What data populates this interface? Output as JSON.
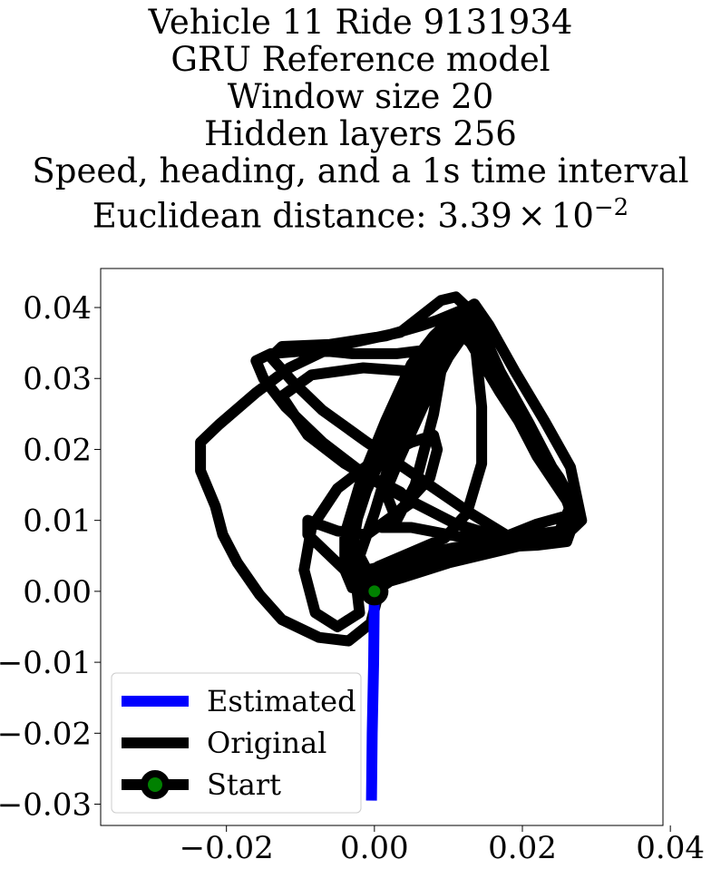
{
  "title_lines": [
    "Vehicle 11 Ride 9131934",
    "GRU Reference model",
    "Window size 20",
    "Hidden layers 256",
    "Speed, heading, and a 1s time interval"
  ],
  "distance": {
    "label": "Euclidean distance:",
    "mantissa": "3.39",
    "times": "×",
    "base": "10",
    "exponent": "−2"
  },
  "chart_data": {
    "type": "line",
    "xlim": [
      -0.037,
      0.039
    ],
    "ylim": [
      -0.033,
      0.0455
    ],
    "grid": false,
    "legend_position": "lower-left",
    "x_ticks": [
      {
        "value": -0.02,
        "label": "−0.02"
      },
      {
        "value": 0.0,
        "label": "0.00"
      },
      {
        "value": 0.02,
        "label": "0.02"
      },
      {
        "value": 0.04,
        "label": "0.04"
      }
    ],
    "y_ticks": [
      {
        "value": 0.04,
        "label": "0.04"
      },
      {
        "value": 0.03,
        "label": "0.03"
      },
      {
        "value": 0.02,
        "label": "0.02"
      },
      {
        "value": 0.01,
        "label": "0.01"
      },
      {
        "value": 0.0,
        "label": "0.00"
      },
      {
        "value": -0.01,
        "label": "−0.01"
      },
      {
        "value": -0.02,
        "label": "−0.02"
      },
      {
        "value": -0.03,
        "label": "−0.03"
      }
    ],
    "series": [
      {
        "name": "Estimated",
        "color": "#0000ff",
        "points": [
          [
            0.0,
            0.0
          ],
          [
            -0.0001,
            -0.01
          ],
          [
            -0.0003,
            -0.02
          ],
          [
            -0.0004,
            -0.0295
          ]
        ]
      },
      {
        "name": "Original",
        "color": "#000000",
        "points": [
          [
            0.0,
            0.0
          ],
          [
            -0.003,
            0.0005
          ],
          [
            -0.004,
            0.003
          ],
          [
            -0.004,
            0.008
          ],
          [
            -0.002,
            0.015
          ],
          [
            0.0015,
            0.024
          ],
          [
            0.005,
            0.032
          ],
          [
            0.008,
            0.036
          ],
          [
            0.009,
            0.037
          ],
          [
            0.01,
            0.036
          ],
          [
            0.008,
            0.033
          ],
          [
            0.003,
            0.025
          ],
          [
            -0.0005,
            0.016
          ],
          [
            -0.003,
            0.008
          ],
          [
            -0.0035,
            0.002
          ],
          [
            -0.001,
            0.0005
          ],
          [
            0.004,
            0.002
          ],
          [
            0.01,
            0.004
          ],
          [
            0.018,
            0.006
          ],
          [
            0.024,
            0.0075
          ],
          [
            0.027,
            0.009
          ],
          [
            0.026,
            0.013
          ],
          [
            0.022,
            0.02
          ],
          [
            0.017,
            0.028
          ],
          [
            0.013,
            0.035
          ],
          [
            0.011,
            0.038
          ],
          [
            0.009,
            0.037
          ],
          [
            0.007,
            0.033
          ],
          [
            0.004,
            0.027
          ],
          [
            0.001,
            0.019
          ],
          [
            -0.002,
            0.012
          ],
          [
            -0.003,
            0.006
          ],
          [
            -0.002,
            0.002
          ],
          [
            0.002,
            0.0025
          ],
          [
            0.009,
            0.005
          ],
          [
            0.016,
            0.007
          ],
          [
            0.022,
            0.008
          ],
          [
            0.026,
            0.0085
          ],
          [
            0.027,
            0.012
          ],
          [
            0.025,
            0.016
          ],
          [
            0.021,
            0.022
          ],
          [
            0.016,
            0.03
          ],
          [
            0.013,
            0.038
          ],
          [
            0.012,
            0.0385
          ],
          [
            0.009,
            0.034
          ],
          [
            0.005,
            0.026
          ],
          [
            0.002,
            0.018
          ],
          [
            0.0,
            0.011
          ],
          [
            -0.002,
            0.005
          ],
          [
            -0.001,
            0.003
          ],
          [
            0.003,
            0.004
          ],
          [
            0.01,
            0.006
          ],
          [
            0.018,
            0.0075
          ],
          [
            0.025,
            0.0085
          ],
          [
            0.0265,
            0.012
          ],
          [
            0.022,
            0.019
          ],
          [
            0.018,
            0.027
          ],
          [
            0.014,
            0.034
          ],
          [
            0.012,
            0.036
          ],
          [
            0.01,
            0.033
          ],
          [
            0.007,
            0.027
          ],
          [
            0.0035,
            0.019
          ],
          [
            0.0015,
            0.014
          ],
          [
            0.003,
            0.01
          ],
          [
            0.0055,
            0.015
          ],
          [
            0.008,
            0.025
          ],
          [
            0.0095,
            0.034
          ],
          [
            0.0105,
            0.0365
          ],
          [
            0.009,
            0.035
          ],
          [
            0.007,
            0.034
          ],
          [
            0.003,
            0.0335
          ],
          [
            -0.003,
            0.0335
          ],
          [
            -0.008,
            0.034
          ],
          [
            -0.014,
            0.0335
          ],
          [
            -0.016,
            0.0325
          ],
          [
            -0.015,
            0.03
          ],
          [
            -0.012,
            0.026
          ],
          [
            -0.007,
            0.021
          ],
          [
            -0.002,
            0.017
          ],
          [
            0.0035,
            0.014
          ],
          [
            0.005,
            0.0125
          ],
          [
            0.003,
            0.011
          ],
          [
            -0.001,
            0.008
          ],
          [
            -0.005,
            0.0085
          ],
          [
            -0.009,
            0.01
          ],
          [
            -0.009,
            0.008
          ],
          [
            -0.006,
            0.005
          ],
          [
            -0.0025,
            0.0015
          ],
          [
            -0.002,
            -0.003
          ],
          [
            -0.005,
            -0.005
          ],
          [
            -0.008,
            -0.003
          ],
          [
            -0.0095,
            0.003
          ],
          [
            -0.0085,
            0.009
          ],
          [
            -0.005,
            0.0145
          ],
          [
            0.0,
            0.0185
          ],
          [
            0.005,
            0.021
          ],
          [
            0.008,
            0.022
          ],
          [
            0.0085,
            0.02
          ],
          [
            0.0075,
            0.016
          ],
          [
            0.004,
            0.012
          ],
          [
            0.001,
            0.009
          ],
          [
            0.005,
            0.009
          ],
          [
            0.011,
            0.0078
          ],
          [
            0.017,
            0.0072
          ],
          [
            0.02,
            0.007
          ],
          [
            0.0185,
            0.0075
          ],
          [
            0.013,
            0.011
          ],
          [
            0.006,
            0.016
          ],
          [
            -0.001,
            0.021
          ],
          [
            -0.007,
            0.0255
          ],
          [
            -0.011,
            0.0295
          ],
          [
            -0.014,
            0.033
          ],
          [
            -0.0125,
            0.0345
          ],
          [
            -0.006,
            0.0348
          ],
          [
            0.0015,
            0.036
          ],
          [
            0.0065,
            0.0375
          ],
          [
            0.0085,
            0.0382
          ],
          [
            0.0115,
            0.0395
          ],
          [
            0.0135,
            0.036
          ],
          [
            0.0145,
            0.026
          ],
          [
            0.0145,
            0.018
          ],
          [
            0.0125,
            0.011
          ],
          [
            0.0095,
            0.0075
          ],
          [
            0.005,
            0.0055
          ],
          [
            0.0005,
            0.0035
          ],
          [
            0.003,
            0.0033
          ],
          [
            0.0085,
            0.005
          ],
          [
            0.016,
            0.007
          ],
          [
            0.022,
            0.0095
          ],
          [
            0.0265,
            0.0108
          ],
          [
            0.027,
            0.0105
          ],
          [
            0.025,
            0.0073
          ],
          [
            0.018,
            0.0073
          ],
          [
            0.011,
            0.0095
          ],
          [
            0.0035,
            0.0135
          ],
          [
            -0.004,
            0.018
          ],
          [
            -0.009,
            0.022
          ],
          [
            -0.0125,
            0.0275
          ],
          [
            -0.0085,
            0.0305
          ],
          [
            -0.0015,
            0.0315
          ],
          [
            0.005,
            0.031
          ],
          [
            0.009,
            0.0335
          ],
          [
            0.0105,
            0.0385
          ],
          [
            0.0135,
            0.0405
          ],
          [
            0.0155,
            0.0375
          ],
          [
            0.019,
            0.031
          ],
          [
            0.023,
            0.024
          ],
          [
            0.0265,
            0.0175
          ],
          [
            0.028,
            0.01
          ],
          [
            0.026,
            0.008
          ],
          [
            0.02,
            0.007
          ],
          [
            0.013,
            0.005
          ],
          [
            0.007,
            0.0035
          ],
          [
            0.003,
            0.003
          ],
          [
            0.001,
            0.0015
          ],
          [
            -0.0005,
            -0.0045
          ],
          [
            -0.0035,
            -0.007
          ],
          [
            -0.0075,
            -0.0065
          ],
          [
            -0.0125,
            -0.004
          ],
          [
            -0.0155,
            -0.0005
          ],
          [
            -0.0185,
            0.004
          ],
          [
            -0.0205,
            0.008
          ],
          [
            -0.0215,
            0.012
          ],
          [
            -0.0235,
            0.017
          ],
          [
            -0.0235,
            0.021
          ],
          [
            -0.021,
            0.0235
          ],
          [
            -0.016,
            0.028
          ],
          [
            -0.0115,
            0.0315
          ],
          [
            -0.0055,
            0.0345
          ],
          [
            0.0035,
            0.0365
          ],
          [
            0.009,
            0.041
          ],
          [
            0.011,
            0.0415
          ],
          [
            0.0135,
            0.039
          ],
          [
            0.017,
            0.031
          ],
          [
            0.021,
            0.0235
          ],
          [
            0.025,
            0.0155
          ],
          [
            0.027,
            0.01
          ],
          [
            0.026,
            0.007
          ],
          [
            0.022,
            0.0065
          ],
          [
            0.016,
            0.0062
          ],
          [
            0.009,
            0.004
          ],
          [
            0.003,
            0.002
          ],
          [
            0.0,
            0.0
          ]
        ]
      }
    ],
    "start_point": {
      "name": "Start",
      "x": 0.0,
      "y": 0.0,
      "marker_edge": "#000000",
      "marker_face": "#008000"
    }
  }
}
